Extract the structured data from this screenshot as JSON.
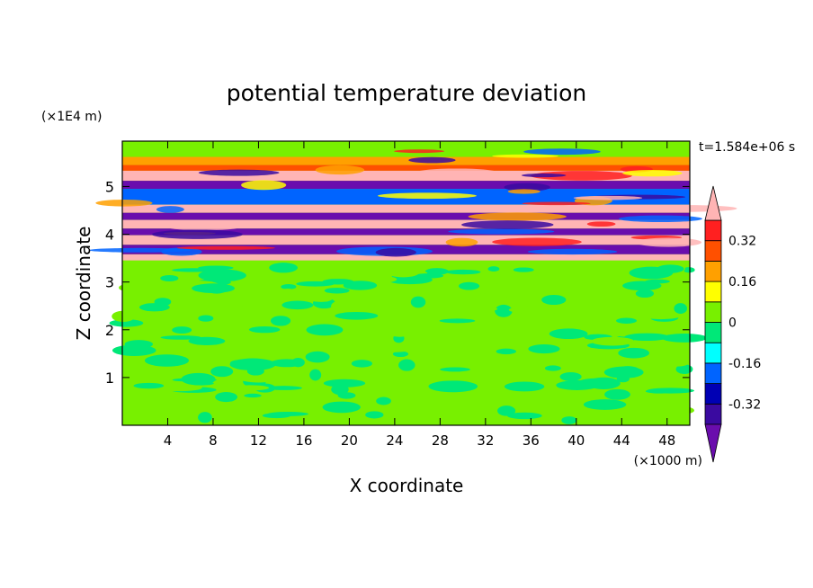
{
  "chart_data": {
    "type": "heatmap",
    "title": "potential temperature deviation",
    "xlabel": "X coordinate",
    "ylabel": "Z coordinate",
    "x_unit": "(×1000 m)",
    "y_unit": "(×1E4 m)",
    "time_label": "t=1.584e+06 s",
    "xlim": [
      0,
      50
    ],
    "ylim": [
      0,
      5.95
    ],
    "x_ticks": [
      4,
      8,
      12,
      16,
      20,
      24,
      28,
      32,
      36,
      40,
      44,
      48
    ],
    "y_ticks": [
      1,
      2,
      3,
      4,
      5
    ],
    "grid": false,
    "legend": "right",
    "colorbar": {
      "tick_labels": [
        "0.32",
        "0.16",
        "0",
        "-0.16",
        "-0.32"
      ],
      "tick_values": [
        0.32,
        0.16,
        0,
        -0.16,
        -0.32
      ],
      "levels": [
        -0.4,
        -0.32,
        -0.24,
        -0.16,
        -0.08,
        0,
        0.08,
        0.16,
        0.24,
        0.32,
        0.4
      ],
      "colors": [
        "#6a0dad",
        "#3a0aa0",
        "#0000b4",
        "#0064ff",
        "#00ffff",
        "#00e878",
        "#78f000",
        "#ffff00",
        "#ffa000",
        "#ff5000",
        "#ff2020",
        "#ffb4b4"
      ],
      "under_color": "#6a0dad",
      "over_color": "#ffb4b4"
    },
    "field_bands": [
      {
        "z": [
          5.62,
          5.95
        ],
        "value": 0.04
      },
      {
        "z": [
          5.45,
          5.62
        ],
        "value": 0.2
      },
      {
        "z": [
          5.33,
          5.45
        ],
        "value": 0.3
      },
      {
        "z": [
          5.12,
          5.33
        ],
        "value": 0.44
      },
      {
        "z": [
          4.95,
          5.12
        ],
        "value": -0.44
      },
      {
        "z": [
          4.62,
          4.95
        ],
        "value": -0.24
      },
      {
        "z": [
          4.45,
          4.62
        ],
        "value": 0.44
      },
      {
        "z": [
          4.3,
          4.45
        ],
        "value": -0.44
      },
      {
        "z": [
          4.12,
          4.3
        ],
        "value": 0.44
      },
      {
        "z": [
          3.98,
          4.12
        ],
        "value": -0.44
      },
      {
        "z": [
          3.78,
          3.98
        ],
        "value": 0.44
      },
      {
        "z": [
          3.58,
          3.78
        ],
        "value": -0.44
      },
      {
        "z": [
          3.45,
          3.58
        ],
        "value": 0.44
      },
      {
        "z": [
          0.0,
          3.45
        ],
        "value": 0.04
      }
    ]
  }
}
